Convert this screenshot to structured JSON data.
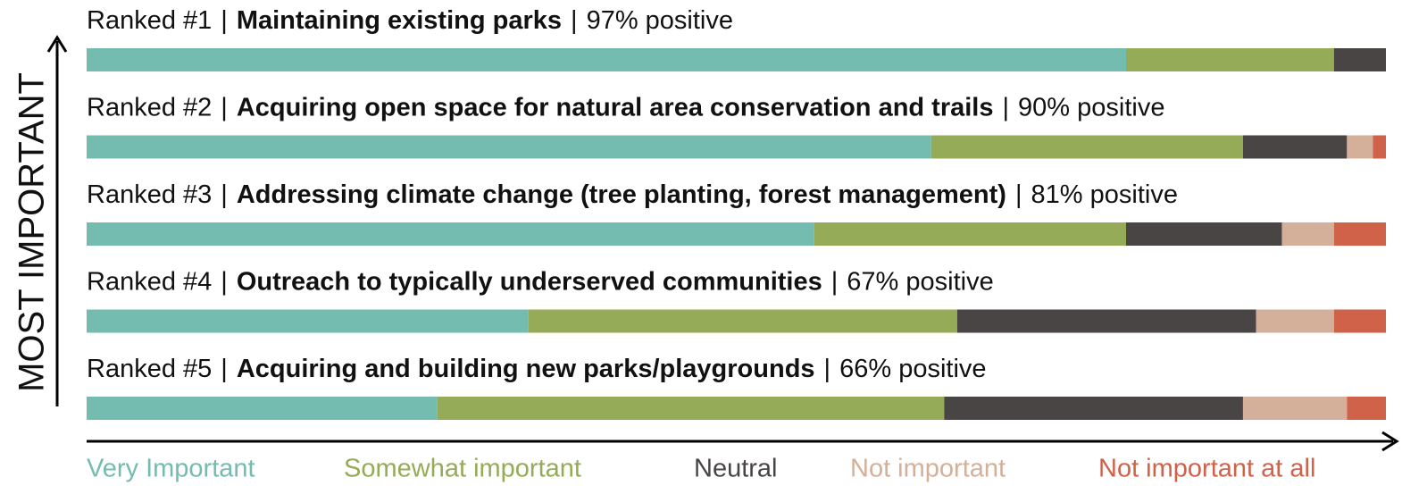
{
  "chart_data": {
    "type": "bar",
    "orientation": "horizontal",
    "stacked": true,
    "y_label": "MOST IMPORTANT",
    "separator": "|",
    "ranks": [
      "Ranked #1",
      "Ranked #2",
      "Ranked #3",
      "Ranked #4",
      "Ranked #5"
    ],
    "categories": [
      "Maintaining existing parks",
      "Acquiring open space for natural area conservation and trails",
      "Addressing climate change (tree planting, forest management)",
      "Outreach to typically underserved communities",
      "Acquiring and building new parks/playgrounds"
    ],
    "positive_labels": [
      "97% positive",
      "90% positive",
      "81% positive",
      "67% positive",
      "66% positive"
    ],
    "xlim": [
      0,
      100
    ],
    "legend": "bottom",
    "series": [
      {
        "name": "Very Important",
        "color": "#74bcb0",
        "values": [
          80,
          65,
          56,
          34,
          27
        ]
      },
      {
        "name": "Somewhat important",
        "color": "#95ab57",
        "values": [
          16,
          24,
          24,
          33,
          39
        ]
      },
      {
        "name": "Neutral",
        "color": "#4a4545",
        "values": [
          4,
          8,
          12,
          23,
          23
        ]
      },
      {
        "name": "Not important",
        "color": "#d4b09a",
        "values": [
          0,
          2,
          4,
          6,
          8
        ]
      },
      {
        "name": "Not important at all",
        "color": "#d0624a",
        "values": [
          0,
          1,
          4,
          4,
          3
        ]
      }
    ]
  }
}
